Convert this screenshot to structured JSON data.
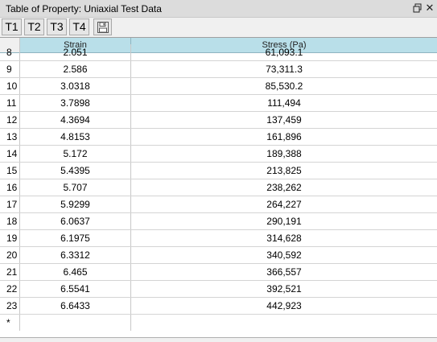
{
  "window": {
    "title": "Table of Property: Uniaxial Test Data"
  },
  "toolbar": {
    "buttons": [
      "T1",
      "T2",
      "T3",
      "T4"
    ],
    "save_icon": "floppy-disk-icon"
  },
  "table": {
    "columns": [
      "Strain",
      "Stress (Pa)"
    ],
    "rows": [
      {
        "index": "8",
        "strain": "2.051",
        "stress": "61,093.1"
      },
      {
        "index": "9",
        "strain": "2.586",
        "stress": "73,311.3"
      },
      {
        "index": "10",
        "strain": "3.0318",
        "stress": "85,530.2"
      },
      {
        "index": "11",
        "strain": "3.7898",
        "stress": "111,494"
      },
      {
        "index": "12",
        "strain": "4.3694",
        "stress": "137,459"
      },
      {
        "index": "13",
        "strain": "4.8153",
        "stress": "161,896"
      },
      {
        "index": "14",
        "strain": "5.172",
        "stress": "189,388"
      },
      {
        "index": "15",
        "strain": "5.4395",
        "stress": "213,825"
      },
      {
        "index": "16",
        "strain": "5.707",
        "stress": "238,262"
      },
      {
        "index": "17",
        "strain": "5.9299",
        "stress": "264,227"
      },
      {
        "index": "18",
        "strain": "6.0637",
        "stress": "290,191"
      },
      {
        "index": "19",
        "strain": "6.1975",
        "stress": "314,628"
      },
      {
        "index": "20",
        "strain": "6.3312",
        "stress": "340,592"
      },
      {
        "index": "21",
        "strain": "6.465",
        "stress": "366,557"
      },
      {
        "index": "22",
        "strain": "6.5541",
        "stress": "392,521"
      },
      {
        "index": "23",
        "strain": "6.6433",
        "stress": "442,923"
      }
    ],
    "new_row_marker": "*"
  }
}
